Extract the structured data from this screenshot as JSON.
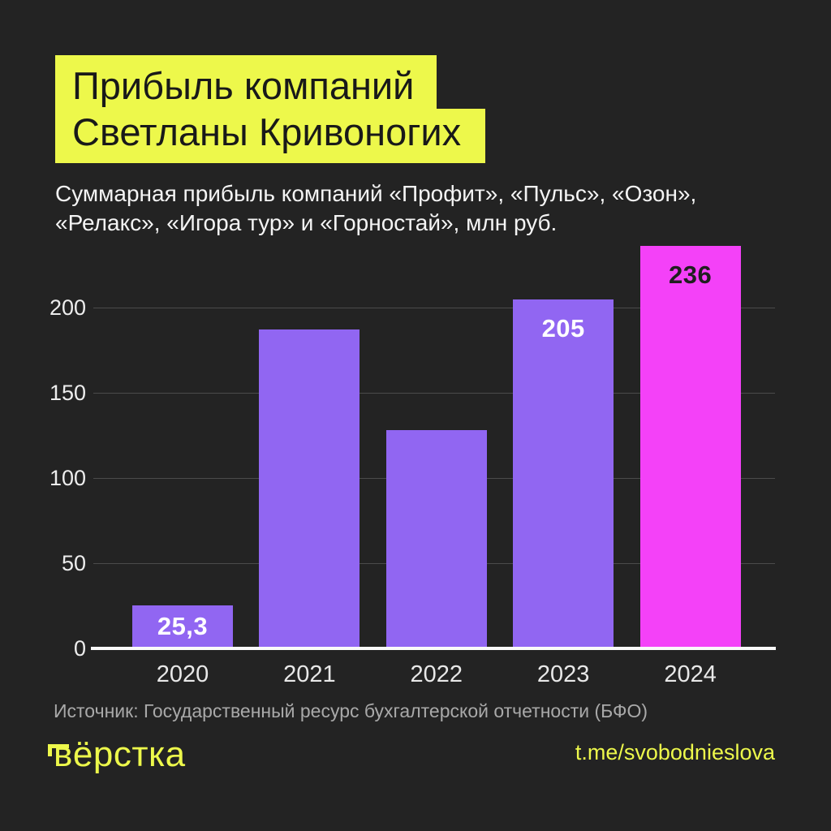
{
  "page": {
    "background_color": "#232323",
    "accent_yellow": "#EDF84B"
  },
  "header": {
    "title_line1": "Прибыль компаний",
    "title_line2": "Светланы Кривоногих",
    "subtitle": "Суммарная прибыль компаний «Профит», «Пульс», «Озон»,\n«Релакс», «Игора тур» и «Горностай», млн руб."
  },
  "chart_data": {
    "type": "bar",
    "categories": [
      "2020",
      "2021",
      "2022",
      "2023",
      "2024"
    ],
    "values": [
      25.3,
      187,
      128,
      205,
      236
    ],
    "bar_labels": [
      "25,3",
      "",
      "",
      "205",
      "236"
    ],
    "bar_colors": [
      "#9166F2",
      "#9166F2",
      "#9166F2",
      "#9166F2",
      "#F441F8"
    ],
    "bar_label_colors": [
      "#FFFFFF",
      "",
      "",
      "#FFFFFF",
      "#1F1F1F"
    ],
    "yticks": [
      0,
      50,
      100,
      150,
      200
    ],
    "ylim": [
      0,
      240
    ],
    "grid": true,
    "legend": false,
    "units": "млн руб.",
    "title": "Прибыль компаний Светланы Кривоногих"
  },
  "footer": {
    "source": "Источник: Государственный ресурс бухгалтерской отчетности (БФО)",
    "logo_text": "вёрстка",
    "telegram": "t.me/svobodnieslova"
  }
}
